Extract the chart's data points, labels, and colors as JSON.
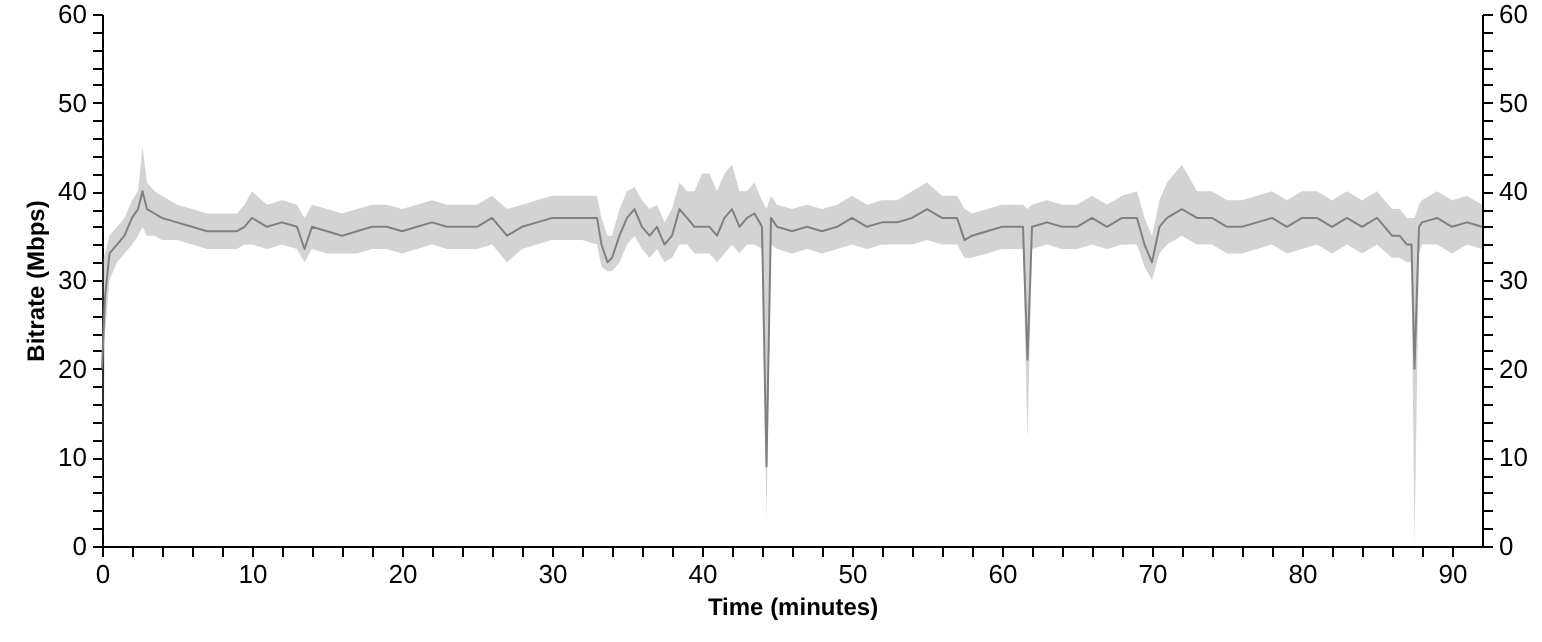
{
  "chart_data": {
    "type": "line",
    "xlabel": "Time (minutes)",
    "ylabel": "Bitrate (Mbps)",
    "xlim": [
      0,
      92
    ],
    "ylim": [
      0,
      60
    ],
    "y2lim": [
      0,
      60
    ],
    "xticks": [
      0,
      {
        "value": 2,
        "label": null
      },
      {
        "value": 4,
        "label": null
      },
      {
        "value": 6,
        "label": null
      },
      {
        "value": 8,
        "label": null
      },
      10,
      {
        "value": 12,
        "label": null
      },
      {
        "value": 14,
        "label": null
      },
      {
        "value": 16,
        "label": null
      },
      {
        "value": 18,
        "label": null
      },
      20,
      {
        "value": 22,
        "label": null
      },
      {
        "value": 24,
        "label": null
      },
      {
        "value": 26,
        "label": null
      },
      {
        "value": 28,
        "label": null
      },
      30,
      {
        "value": 32,
        "label": null
      },
      {
        "value": 34,
        "label": null
      },
      {
        "value": 36,
        "label": null
      },
      {
        "value": 38,
        "label": null
      },
      40,
      {
        "value": 42,
        "label": null
      },
      {
        "value": 44,
        "label": null
      },
      {
        "value": 46,
        "label": null
      },
      {
        "value": 48,
        "label": null
      },
      50,
      {
        "value": 52,
        "label": null
      },
      {
        "value": 54,
        "label": null
      },
      {
        "value": 56,
        "label": null
      },
      {
        "value": 58,
        "label": null
      },
      60,
      {
        "value": 62,
        "label": null
      },
      {
        "value": 64,
        "label": null
      },
      {
        "value": 66,
        "label": null
      },
      {
        "value": 68,
        "label": null
      },
      70,
      {
        "value": 72,
        "label": null
      },
      {
        "value": 74,
        "label": null
      },
      {
        "value": 76,
        "label": null
      },
      {
        "value": 78,
        "label": null
      },
      80,
      {
        "value": 82,
        "label": null
      },
      {
        "value": 84,
        "label": null
      },
      {
        "value": 86,
        "label": null
      },
      {
        "value": 88,
        "label": null
      },
      90
    ],
    "yticks": [
      0,
      {
        "value": 2,
        "label": null
      },
      {
        "value": 4,
        "label": null
      },
      {
        "value": 6,
        "label": null
      },
      {
        "value": 8,
        "label": null
      },
      10,
      {
        "value": 12,
        "label": null
      },
      {
        "value": 14,
        "label": null
      },
      {
        "value": 16,
        "label": null
      },
      {
        "value": 18,
        "label": null
      },
      20,
      {
        "value": 22,
        "label": null
      },
      {
        "value": 24,
        "label": null
      },
      {
        "value": 26,
        "label": null
      },
      {
        "value": 28,
        "label": null
      },
      30,
      {
        "value": 32,
        "label": null
      },
      {
        "value": 34,
        "label": null
      },
      {
        "value": 36,
        "label": null
      },
      {
        "value": 38,
        "label": null
      },
      40,
      {
        "value": 42,
        "label": null
      },
      {
        "value": 44,
        "label": null
      },
      {
        "value": 46,
        "label": null
      },
      {
        "value": 48,
        "label": null
      },
      50,
      {
        "value": 52,
        "label": null
      },
      {
        "value": 54,
        "label": null
      },
      {
        "value": 56,
        "label": null
      },
      {
        "value": 58,
        "label": null
      },
      60
    ],
    "y2ticks": [
      0,
      {
        "value": 2,
        "label": null
      },
      {
        "value": 4,
        "label": null
      },
      {
        "value": 6,
        "label": null
      },
      {
        "value": 8,
        "label": null
      },
      10,
      {
        "value": 12,
        "label": null
      },
      {
        "value": 14,
        "label": null
      },
      {
        "value": 16,
        "label": null
      },
      {
        "value": 18,
        "label": null
      },
      20,
      {
        "value": 22,
        "label": null
      },
      {
        "value": 24,
        "label": null
      },
      {
        "value": 26,
        "label": null
      },
      {
        "value": 28,
        "label": null
      },
      30,
      {
        "value": 32,
        "label": null
      },
      {
        "value": 34,
        "label": null
      },
      {
        "value": 36,
        "label": null
      },
      {
        "value": 38,
        "label": null
      },
      40,
      {
        "value": 42,
        "label": null
      },
      {
        "value": 44,
        "label": null
      },
      {
        "value": 46,
        "label": null
      },
      {
        "value": 48,
        "label": null
      },
      50,
      {
        "value": 52,
        "label": null
      },
      {
        "value": 54,
        "label": null
      },
      {
        "value": 56,
        "label": null
      },
      {
        "value": 58,
        "label": null
      },
      60
    ],
    "grid": false,
    "x": [
      0,
      0.2,
      0.5,
      1,
      1.5,
      2,
      2.4,
      2.7,
      3,
      3.5,
      4,
      5,
      6,
      7,
      8,
      9,
      9.5,
      10,
      11,
      12,
      13,
      13.5,
      14,
      15,
      16,
      17,
      18,
      19,
      20,
      21,
      22,
      23,
      24,
      25,
      26,
      27,
      28,
      29,
      30,
      31,
      32,
      33,
      33.3,
      33.7,
      34,
      34.5,
      35,
      35.5,
      36,
      36.5,
      37,
      37.5,
      38,
      38.5,
      39,
      39.5,
      40,
      40.5,
      41,
      41.5,
      42,
      42.5,
      43,
      43.5,
      44,
      44.3,
      44.6,
      45,
      46,
      47,
      48,
      49,
      50,
      51,
      52,
      53,
      54,
      55,
      56,
      57,
      57.5,
      58,
      59,
      60,
      61,
      61.4,
      61.7,
      62,
      63,
      64,
      65,
      66,
      67,
      68,
      69,
      69.5,
      70,
      70.5,
      71,
      72,
      73,
      74,
      75,
      76,
      77,
      78,
      79,
      80,
      81,
      82,
      83,
      84,
      85,
      86,
      86.5,
      87,
      87.3,
      87.5,
      87.8,
      88,
      89,
      90,
      91,
      92
    ],
    "series": [
      {
        "color": "#808080",
        "values": [
          20,
          28,
          33,
          34,
          35,
          37,
          38,
          40,
          38,
          37.5,
          37,
          36.5,
          36,
          35.5,
          35.5,
          35.5,
          36,
          37,
          36,
          36.5,
          36,
          33.5,
          36,
          35.5,
          35,
          35.5,
          36,
          36,
          35.5,
          36,
          36.5,
          36,
          36,
          36,
          37,
          35,
          36,
          36.5,
          37,
          37,
          37,
          37,
          34,
          32,
          32.5,
          35,
          37,
          38,
          36,
          35,
          36,
          34,
          35,
          38,
          37,
          36,
          36,
          36,
          35,
          37,
          38,
          36,
          37,
          37.5,
          36,
          9,
          37,
          36,
          35.5,
          36,
          35.5,
          36,
          37,
          36,
          36.5,
          36.5,
          37,
          38,
          37,
          37,
          34.5,
          35,
          35.5,
          36,
          36,
          36,
          21,
          36,
          36.5,
          36,
          36,
          37,
          36,
          37,
          37,
          34,
          32,
          36,
          37,
          38,
          37,
          37,
          36,
          36,
          36.5,
          37,
          36,
          37,
          37,
          36,
          37,
          36,
          37,
          35,
          35,
          34,
          34,
          20,
          36,
          36.5,
          37,
          36,
          36.5,
          36
        ],
        "lower": [
          0,
          24,
          30,
          32,
          33,
          34,
          35,
          36,
          35,
          35,
          34.5,
          34.5,
          34,
          33.5,
          33.5,
          33.5,
          34,
          34,
          33.5,
          34,
          33.5,
          32,
          33.5,
          33,
          33,
          33,
          33.5,
          33.5,
          33,
          33.5,
          34,
          33.5,
          33.5,
          33.5,
          34,
          32,
          33.5,
          34,
          34.5,
          34.5,
          34.5,
          34,
          31.5,
          31,
          31,
          32,
          34,
          35,
          33.5,
          32.5,
          33.5,
          32,
          32.5,
          34,
          34,
          33,
          33,
          33,
          32,
          33,
          34,
          33,
          34,
          34,
          33.5,
          3,
          34,
          33.5,
          33,
          33.5,
          33,
          33.5,
          34,
          33.5,
          34,
          34,
          34,
          34.5,
          34,
          34,
          32.5,
          32.5,
          33,
          33.5,
          33.5,
          33.5,
          12,
          33.5,
          34,
          33.5,
          33.5,
          34,
          33.5,
          34,
          34,
          31.5,
          30,
          33,
          34,
          35,
          34,
          34,
          33,
          33,
          33.5,
          34,
          33,
          33.5,
          34,
          33,
          34,
          33,
          34,
          32.5,
          32.5,
          32,
          32,
          0,
          33,
          34,
          34,
          33,
          34,
          33.5
        ],
        "upper": [
          32,
          33,
          35,
          36,
          37,
          39,
          40,
          45,
          41,
          40,
          39.5,
          38.5,
          38,
          37.5,
          37.5,
          37.5,
          38.5,
          40,
          38.5,
          39,
          38.5,
          37,
          38.5,
          38,
          37.5,
          38,
          38.5,
          38.5,
          38,
          38.5,
          39,
          38.5,
          38.5,
          38.5,
          39.5,
          38,
          38.5,
          39,
          39.5,
          39.5,
          39.5,
          39.5,
          37,
          35,
          35,
          38,
          40,
          40.5,
          39,
          38,
          38.5,
          36.5,
          38,
          41,
          40,
          40,
          42,
          42,
          40,
          42,
          43,
          40,
          40,
          41,
          39,
          38,
          39.5,
          38.5,
          38,
          38.5,
          38,
          38.5,
          39.5,
          38.5,
          39,
          39,
          40,
          41,
          39.5,
          39.5,
          38,
          37.5,
          38,
          38.5,
          38.5,
          38.5,
          38,
          38.5,
          39,
          38.5,
          38.5,
          39.5,
          38.5,
          39.5,
          40,
          37,
          35,
          39,
          41,
          43,
          40,
          40,
          39,
          39,
          39.5,
          40,
          39,
          40,
          40,
          39,
          40,
          39,
          40,
          38,
          38,
          37,
          37,
          37,
          38.5,
          39,
          40,
          39,
          39.5,
          38.5
        ]
      }
    ]
  }
}
